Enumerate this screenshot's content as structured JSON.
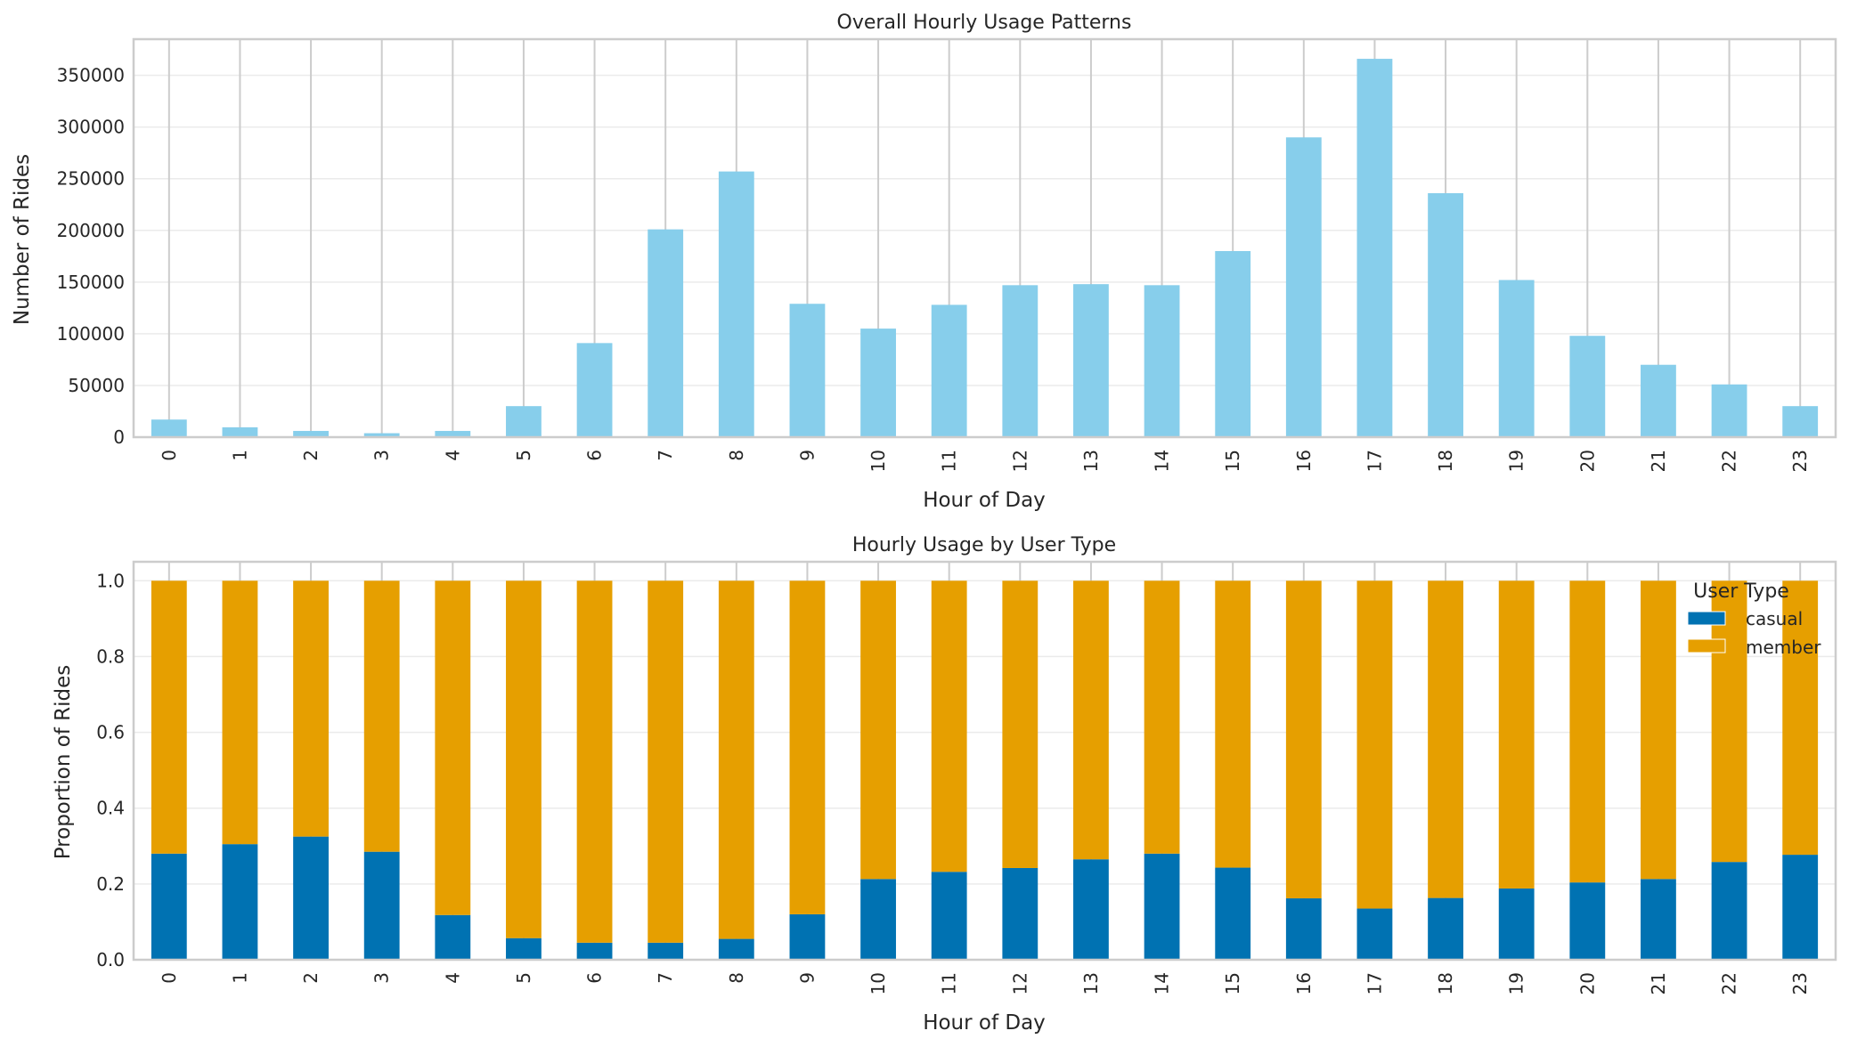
{
  "chart_data": [
    {
      "type": "bar",
      "title": "Overall Hourly Usage Patterns",
      "xlabel": "Hour of Day",
      "ylabel": "Number of Rides",
      "ylim": [
        0,
        385000
      ],
      "yticks": [
        0,
        50000,
        100000,
        150000,
        200000,
        250000,
        300000,
        350000
      ],
      "grid": true,
      "color": "#87CEEB",
      "categories": [
        "0",
        "1",
        "2",
        "3",
        "4",
        "5",
        "6",
        "7",
        "8",
        "9",
        "10",
        "11",
        "12",
        "13",
        "14",
        "15",
        "16",
        "17",
        "18",
        "19",
        "20",
        "21",
        "22",
        "23"
      ],
      "values": [
        17000,
        9500,
        6000,
        3800,
        6000,
        30000,
        91000,
        201000,
        257000,
        129000,
        105000,
        128000,
        147000,
        148000,
        147000,
        180000,
        290000,
        366000,
        236000,
        152000,
        98000,
        70000,
        51000,
        30000
      ]
    },
    {
      "type": "bar",
      "stacked": true,
      "title": "Hourly Usage by User Type",
      "xlabel": "Hour of Day",
      "ylabel": "Proportion of Rides",
      "ylim": [
        0,
        1.05
      ],
      "yticks": [
        0.0,
        0.2,
        0.4,
        0.6,
        0.8,
        1.0
      ],
      "ytick_labels": [
        "0.0",
        "0.2",
        "0.4",
        "0.6",
        "0.8",
        "1.0"
      ],
      "grid": true,
      "legend": {
        "title": "User Type",
        "placement": "top-right"
      },
      "categories": [
        "0",
        "1",
        "2",
        "3",
        "4",
        "5",
        "6",
        "7",
        "8",
        "9",
        "10",
        "11",
        "12",
        "13",
        "14",
        "15",
        "16",
        "17",
        "18",
        "19",
        "20",
        "21",
        "22",
        "23"
      ],
      "series": [
        {
          "name": "casual",
          "color": "#0072B2",
          "values": [
            0.28,
            0.305,
            0.325,
            0.285,
            0.118,
            0.057,
            0.045,
            0.045,
            0.055,
            0.12,
            0.213,
            0.232,
            0.242,
            0.265,
            0.28,
            0.243,
            0.162,
            0.135,
            0.163,
            0.188,
            0.204,
            0.213,
            0.258,
            0.277
          ]
        },
        {
          "name": "member",
          "color": "#E69F00",
          "values": [
            0.72,
            0.695,
            0.675,
            0.715,
            0.882,
            0.943,
            0.955,
            0.955,
            0.945,
            0.88,
            0.787,
            0.768,
            0.758,
            0.735,
            0.72,
            0.757,
            0.838,
            0.865,
            0.837,
            0.812,
            0.796,
            0.787,
            0.742,
            0.723
          ]
        }
      ]
    }
  ]
}
